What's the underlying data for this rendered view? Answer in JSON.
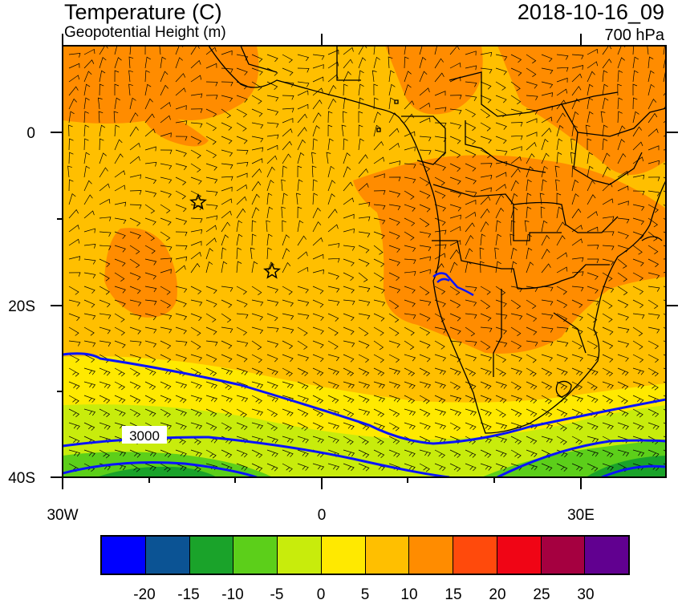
{
  "header": {
    "title": "Temperature (C)",
    "subtitle": "Geopotential Height (m)",
    "valid_time": "2018-10-16_09",
    "level": "700 hPa"
  },
  "axes": {
    "y_labels": [
      "0",
      "20S",
      "40S"
    ],
    "x_labels": [
      "30W",
      "0",
      "30E"
    ]
  },
  "contour_label": "3000",
  "colorbar": {
    "colors": [
      "#0000ff",
      "#0b5394",
      "#1aa32a",
      "#5ccf1a",
      "#c8ec0c",
      "#ffe900",
      "#ffbf00",
      "#ff8c00",
      "#ff4a0c",
      "#f00515",
      "#a50040",
      "#610090"
    ],
    "labels": [
      "-20",
      "-15",
      "-10",
      "-5",
      "0",
      "5",
      "10",
      "15",
      "20",
      "25",
      "30"
    ]
  },
  "colors": {
    "warm_orange": "#ff8c00",
    "base_amber": "#ffbf00",
    "yellow": "#ffe900",
    "yellow_green": "#c8ec0c",
    "green": "#5ccf1a",
    "dark_green": "#1aa32a",
    "contour": "#0a14ff"
  }
}
